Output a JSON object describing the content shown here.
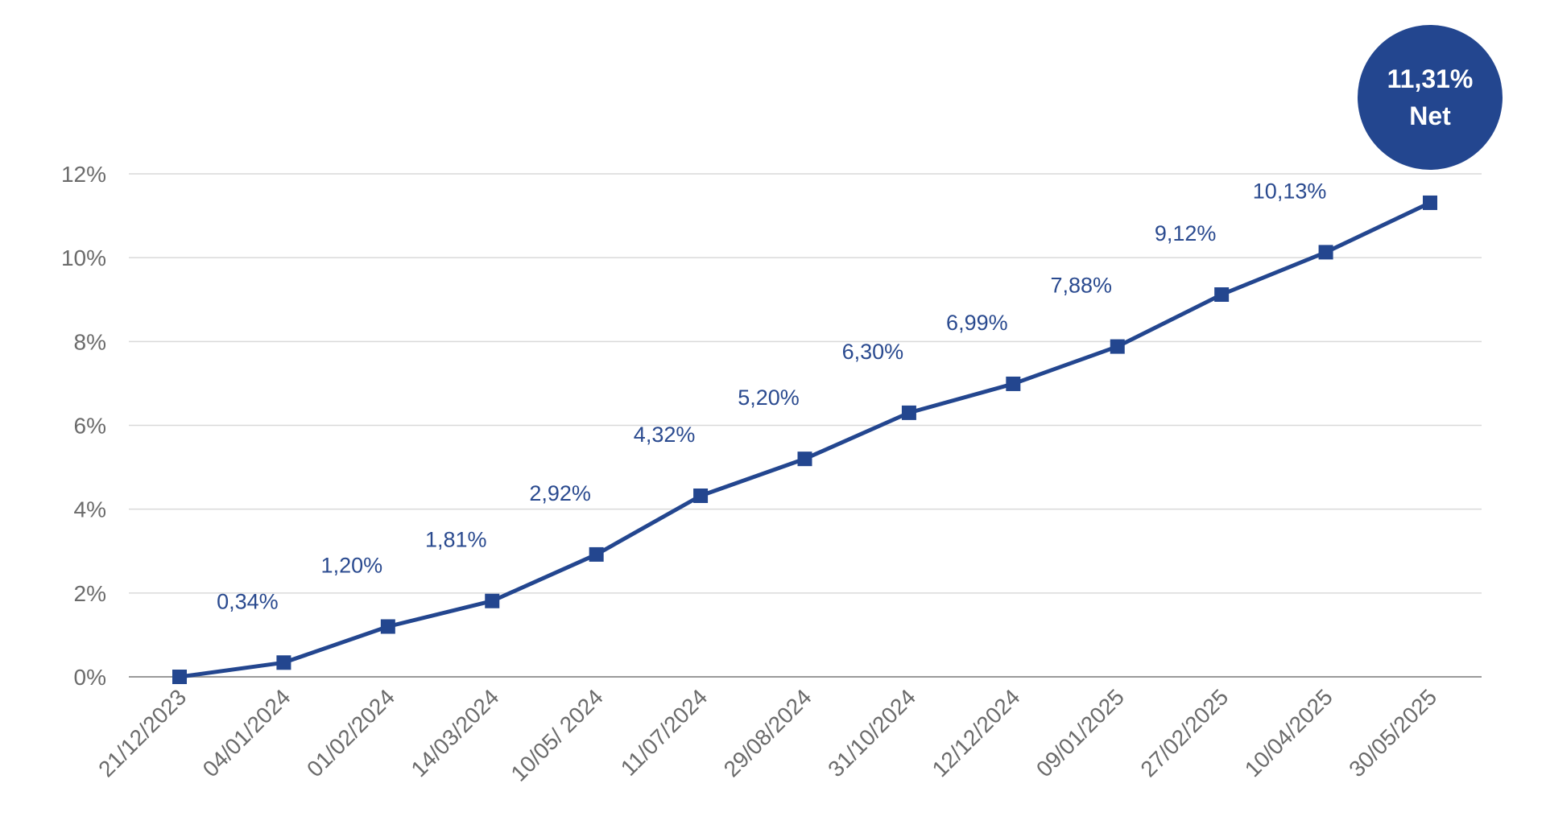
{
  "chart_data": {
    "type": "line",
    "title": "",
    "xlabel": "",
    "ylabel": "",
    "ylim": [
      0,
      12
    ],
    "y_ticks": [
      "0%",
      "2%",
      "4%",
      "6%",
      "8%",
      "10%",
      "12%"
    ],
    "y_tick_values": [
      0,
      2,
      4,
      6,
      8,
      10,
      12
    ],
    "grid": true,
    "categories": [
      "21/12/2023",
      "04/01/2024",
      "01/02/2024",
      "14/03/2024",
      "10/05/ 2024",
      "11/07/2024",
      "29/08/2024",
      "31/10/2024",
      "12/12/2024",
      "09/01/2025",
      "27/02/2025",
      "10/04/2025",
      "30/05/2025"
    ],
    "series": [
      {
        "values": [
          0,
          0.34,
          1.2,
          1.81,
          2.92,
          4.32,
          5.2,
          6.3,
          6.99,
          7.88,
          9.12,
          10.13,
          11.31
        ],
        "data_labels": [
          "",
          "0,34%",
          "1,20%",
          "1,81%",
          "2,92%",
          "4,32%",
          "5,20%",
          "6,30%",
          "6,99%",
          "7,88%",
          "9,12%",
          "10,13%",
          ""
        ],
        "color": "#23468f"
      }
    ],
    "badge": {
      "line1": "11,31%",
      "line2": "Net",
      "color": "#23468f"
    }
  }
}
